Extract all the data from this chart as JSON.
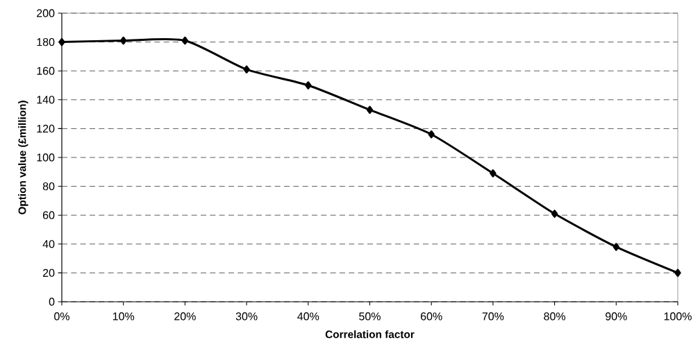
{
  "chart_data": {
    "type": "line",
    "xlabel": "Correlation factor",
    "ylabel": "Option value (£million)",
    "x": [
      0,
      10,
      20,
      30,
      40,
      50,
      60,
      70,
      80,
      90,
      100
    ],
    "series": [
      {
        "color": "#000000",
        "values": [
          180,
          181,
          181,
          161,
          150,
          133,
          116,
          89,
          61,
          38,
          20
        ]
      }
    ],
    "xlim": [
      0,
      100
    ],
    "xticks": [
      {
        "value": 0,
        "label": "0%"
      },
      {
        "value": 10,
        "label": "10%"
      },
      {
        "value": 20,
        "label": "20%"
      },
      {
        "value": 30,
        "label": "30%"
      },
      {
        "value": 40,
        "label": "40%"
      },
      {
        "value": 50,
        "label": "50%"
      },
      {
        "value": 60,
        "label": "60%"
      },
      {
        "value": 70,
        "label": "70%"
      },
      {
        "value": 80,
        "label": "80%"
      },
      {
        "value": 90,
        "label": "90%"
      },
      {
        "value": 100,
        "label": "100%"
      }
    ],
    "ylim": [
      0,
      200
    ],
    "yticks": [
      0,
      20,
      40,
      60,
      80,
      100,
      120,
      140,
      160,
      180,
      200
    ],
    "grid": "y",
    "marker": "diamond",
    "line_style": "solid"
  }
}
